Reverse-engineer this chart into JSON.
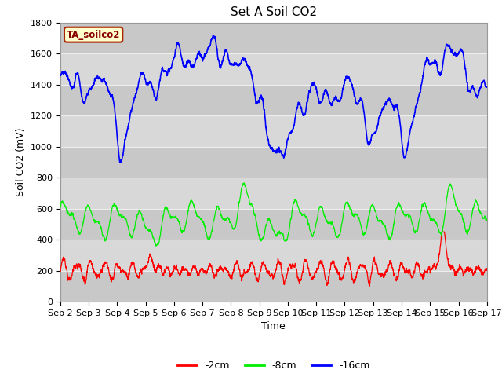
{
  "title": "Set A Soil CO2",
  "ylabel": "Soil CO2 (mV)",
  "xlabel": "Time",
  "label_box_text": "TA_soilco2",
  "ylim": [
    0,
    1800
  ],
  "x_tick_labels": [
    "Sep 2",
    "Sep 3",
    "Sep 4",
    "Sep 5",
    "Sep 6",
    "Sep 7",
    "Sep 8",
    "Sep 9",
    "Sep 10",
    "Sep 11",
    "Sep 12",
    "Sep 13",
    "Sep 14",
    "Sep 15",
    "Sep 16",
    "Sep 17"
  ],
  "legend_labels": [
    "-2cm",
    "-8cm",
    "-16cm"
  ],
  "line_colors": [
    "#ff0000",
    "#00ee00",
    "#0000ff"
  ],
  "background_color": "#ffffff",
  "plot_bg_color": "#d8d8d8",
  "grid_color": "#eeeeee",
  "title_fontsize": 11,
  "axis_label_fontsize": 9,
  "tick_fontsize": 8
}
